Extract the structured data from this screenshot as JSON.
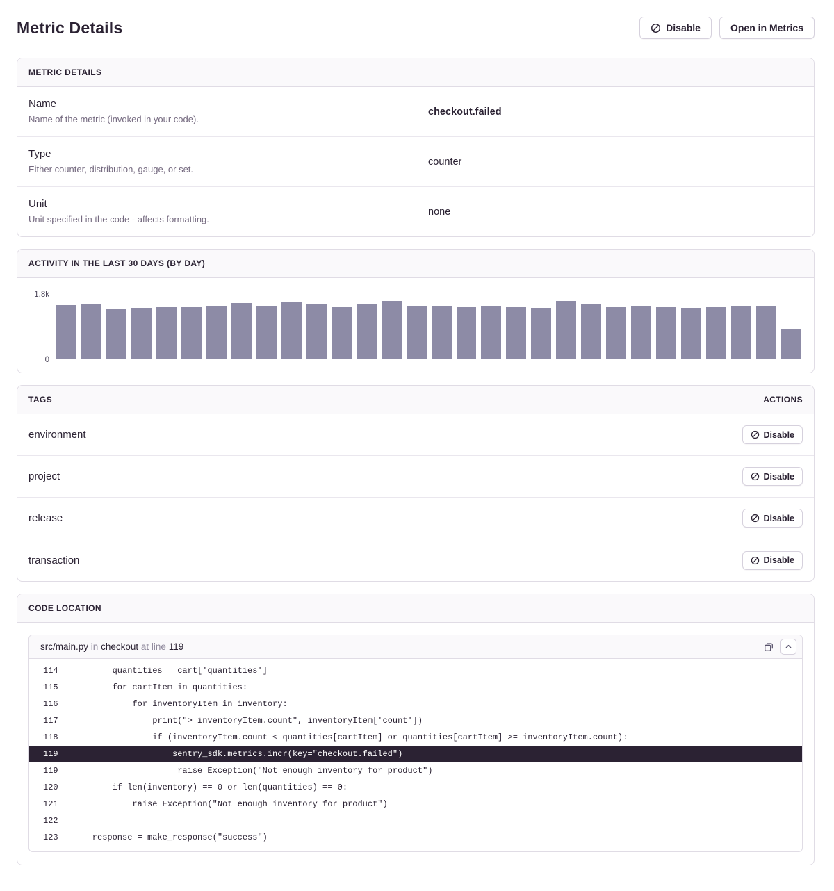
{
  "page": {
    "title": "Metric Details",
    "actions": {
      "disable": "Disable",
      "open_in_metrics": "Open in Metrics"
    }
  },
  "metric_details": {
    "header": "METRIC DETAILS",
    "rows": [
      {
        "label": "Name",
        "description": "Name of the metric (invoked in your code).",
        "value": "checkout.failed",
        "emphasis": true
      },
      {
        "label": "Type",
        "description": "Either counter, distribution, gauge, or set.",
        "value": "counter",
        "emphasis": false
      },
      {
        "label": "Unit",
        "description": "Unit specified in the code - affects formatting.",
        "value": "none",
        "emphasis": false
      }
    ]
  },
  "activity": {
    "header": "ACTIVITY IN THE LAST 30 DAYS (BY DAY)"
  },
  "chart_data": {
    "type": "bar",
    "title": "Activity in the last 30 days (by day)",
    "values": [
      1520,
      1570,
      1430,
      1445,
      1465,
      1470,
      1495,
      1590,
      1515,
      1620,
      1560,
      1470,
      1545,
      1640,
      1500,
      1495,
      1470,
      1495,
      1470,
      1450,
      1650,
      1545,
      1470,
      1500,
      1475,
      1450,
      1470,
      1490,
      1510,
      860
    ],
    "xlabel": "",
    "ylabel": "",
    "ylim": [
      0,
      1800
    ],
    "yticks": [
      "0",
      "1.8k"
    ],
    "grid": false,
    "legend": false,
    "bar_color": "#8d8ba6"
  },
  "tags": {
    "header": "TAGS",
    "actions_header": "ACTIONS",
    "disable_label": "Disable",
    "items": [
      "environment",
      "project",
      "release",
      "transaction"
    ]
  },
  "code_location": {
    "header": "CODE LOCATION",
    "file": "src/main.py",
    "in_word": "in",
    "function": "checkout",
    "at_line_word": "at line",
    "line_number": "119",
    "lines": [
      {
        "no": "114",
        "code": "        quantities = cart['quantities']",
        "highlight": false
      },
      {
        "no": "115",
        "code": "        for cartItem in quantities:",
        "highlight": false
      },
      {
        "no": "116",
        "code": "            for inventoryItem in inventory:",
        "highlight": false
      },
      {
        "no": "117",
        "code": "                print(\"> inventoryItem.count\", inventoryItem['count'])",
        "highlight": false
      },
      {
        "no": "118",
        "code": "                if (inventoryItem.count < quantities[cartItem] or quantities[cartItem] >= inventoryItem.count):",
        "highlight": false
      },
      {
        "no": "119",
        "code": "                    sentry_sdk.metrics.incr(key=\"checkout.failed\")",
        "highlight": true
      },
      {
        "no": "119",
        "code": "                     raise Exception(\"Not enough inventory for product\")",
        "highlight": false
      },
      {
        "no": "120",
        "code": "        if len(inventory) == 0 or len(quantities) == 0:",
        "highlight": false
      },
      {
        "no": "121",
        "code": "            raise Exception(\"Not enough inventory for product\")",
        "highlight": false
      },
      {
        "no": "122",
        "code": "",
        "highlight": false
      },
      {
        "no": "123",
        "code": "    response = make_response(\"success\")",
        "highlight": false
      }
    ]
  },
  "colors": {
    "text_dark": "#2b2233",
    "text_muted": "#74697f",
    "border": "#e0dce5",
    "panel_header_bg": "#faf9fb",
    "bar": "#8d8ba6",
    "highlight_line_bg": "#2b2233"
  }
}
